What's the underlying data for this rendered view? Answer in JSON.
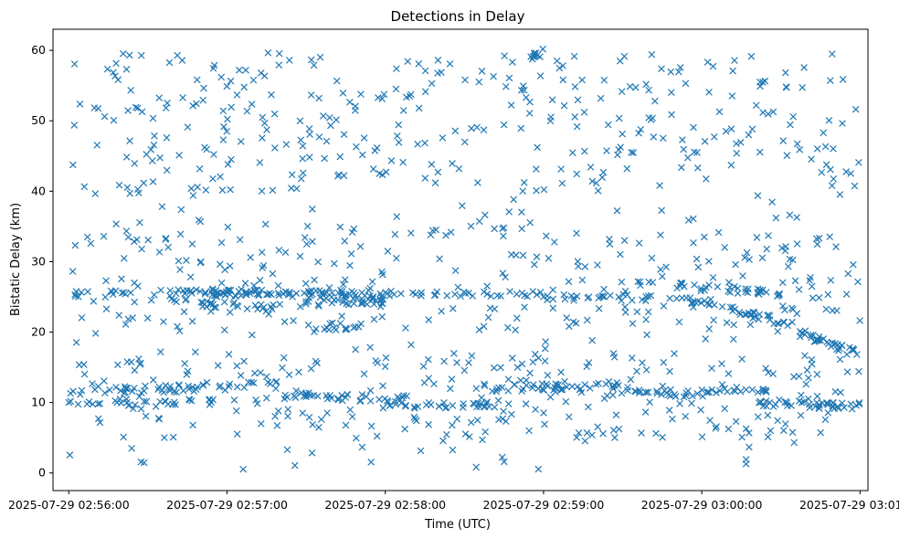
{
  "chart_data": {
    "type": "scatter",
    "title": "Detections in Delay",
    "xlabel": "Time (UTC)",
    "ylabel": "Bistatic Delay (km)",
    "marker": "x",
    "color": "#1f77b4",
    "grid": false,
    "x_range": [
      "2025-07-29 02:55:54",
      "2025-07-29 03:01:03"
    ],
    "ylim": [
      -2.5,
      63
    ],
    "x_ticks": [
      "2025-07-29 02:56:00",
      "2025-07-29 02:57:00",
      "2025-07-29 02:58:00",
      "2025-07-29 02:59:00",
      "2025-07-29 03:00:00",
      "2025-07-29 03:01:00"
    ],
    "y_ticks": [
      0,
      10,
      20,
      30,
      40,
      50,
      60
    ],
    "series": [
      {
        "description_of_tracks": "dense detection tracks (time, delay) plus scattered clutter",
        "tracks": [
          {
            "x": [
              "02:56:00",
              "02:59:00"
            ],
            "y": [
              25.5,
              25.5
            ],
            "points": 90
          },
          {
            "x": [
              "02:56:30",
              "02:58:00"
            ],
            "y": [
              26.0,
              25.0
            ],
            "points": 60
          },
          {
            "x": [
              "02:56:30",
              "02:57:20"
            ],
            "y": [
              24.5,
              23.5
            ],
            "points": 28
          },
          {
            "x": [
              "02:57:20",
              "02:58:00"
            ],
            "y": [
              24.0,
              24.5
            ],
            "points": 24
          },
          {
            "x": [
              "02:57:25",
              "02:57:50"
            ],
            "y": [
              20.8,
              20.8
            ],
            "points": 14
          },
          {
            "x": [
              "02:59:00",
              "02:59:40"
            ],
            "y": [
              25.0,
              24.8
            ],
            "points": 22
          },
          {
            "x": [
              "02:59:35",
              "03:00:30"
            ],
            "y": [
              27.0,
              25.5
            ],
            "points": 40
          },
          {
            "x": [
              "02:59:50",
              "03:00:35"
            ],
            "y": [
              25.0,
              21.0
            ],
            "points": 40
          },
          {
            "x": [
              "03:00:35",
              "03:01:00"
            ],
            "y": [
              20.0,
              17.0
            ],
            "points": 30
          },
          {
            "x": [
              "02:56:00",
              "02:57:00"
            ],
            "y": [
              10.0,
              10.0
            ],
            "points": 30
          },
          {
            "x": [
              "02:56:00",
              "02:57:20"
            ],
            "y": [
              11.5,
              12.5
            ],
            "points": 45
          },
          {
            "x": [
              "02:57:20",
              "02:58:10"
            ],
            "y": [
              11.0,
              10.5
            ],
            "points": 30
          },
          {
            "x": [
              "02:58:00",
              "02:58:40"
            ],
            "y": [
              10.0,
              9.5
            ],
            "points": 28
          },
          {
            "x": [
              "02:58:40",
              "02:59:30"
            ],
            "y": [
              12.0,
              12.5
            ],
            "points": 40
          },
          {
            "x": [
              "02:59:30",
              "03:00:00"
            ],
            "y": [
              12.0,
              11.0
            ],
            "points": 24
          },
          {
            "x": [
              "03:00:00",
              "03:00:25"
            ],
            "y": [
              11.5,
              12.0
            ],
            "points": 20
          },
          {
            "x": [
              "03:00:20",
              "03:01:00"
            ],
            "y": [
              10.0,
              9.5
            ],
            "points": 40
          },
          {
            "x": [
              "02:58:55",
              "02:59:00"
            ],
            "y": [
              59.0,
              59.8
            ],
            "points": 10
          }
        ],
        "clutter": {
          "x_range": [
            "02:56:00",
            "03:01:00"
          ],
          "y_range": [
            0.5,
            59.8
          ],
          "points": 950
        }
      }
    ]
  }
}
